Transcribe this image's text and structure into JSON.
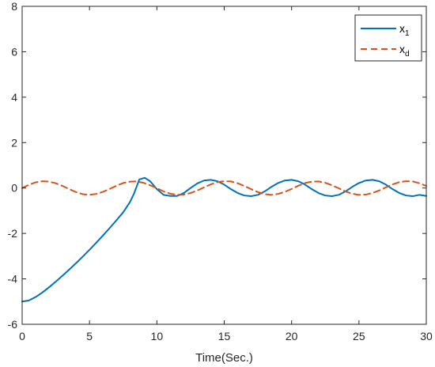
{
  "chart_data": {
    "type": "line",
    "title": "",
    "xlabel": "Time(Sec.)",
    "ylabel": "",
    "xlim": [
      0,
      30
    ],
    "ylim": [
      -6,
      8
    ],
    "xticks": [
      0,
      5,
      10,
      15,
      20,
      25,
      30
    ],
    "yticks": [
      -6,
      -4,
      -2,
      0,
      2,
      4,
      6,
      8
    ],
    "xtick_labels": [
      "0",
      "5",
      "10",
      "15",
      "20",
      "25",
      "30"
    ],
    "ytick_labels": [
      "-6",
      "-4",
      "-2",
      "0",
      "2",
      "4",
      "6",
      "8"
    ],
    "grid": false,
    "box": true,
    "legend_position": "top-right",
    "series": [
      {
        "name_main": "x",
        "name_sub": "1",
        "color": "#0072BD",
        "style": "solid",
        "x": [
          0,
          0.5,
          1,
          1.5,
          2,
          2.5,
          3,
          3.5,
          4,
          4.5,
          5,
          5.5,
          6,
          6.5,
          7,
          7.5,
          8,
          8.3,
          8.7,
          9.1,
          9.5,
          10,
          10.5,
          11,
          11.5,
          12,
          12.5,
          13,
          13.5,
          14,
          14.5,
          15,
          15.5,
          16,
          16.5,
          17,
          17.5,
          18,
          18.5,
          19,
          19.5,
          20,
          20.5,
          21,
          21.5,
          22,
          22.5,
          23,
          23.5,
          24,
          24.5,
          25,
          25.5,
          26,
          26.5,
          27,
          27.5,
          28,
          28.5,
          29,
          29.5,
          30
        ],
        "values": [
          -5.0,
          -4.95,
          -4.8,
          -4.6,
          -4.37,
          -4.12,
          -3.86,
          -3.59,
          -3.31,
          -3.02,
          -2.72,
          -2.41,
          -2.09,
          -1.76,
          -1.42,
          -1.07,
          -0.62,
          -0.25,
          0.38,
          0.45,
          0.3,
          -0.05,
          -0.3,
          -0.35,
          -0.35,
          -0.22,
          0.0,
          0.2,
          0.33,
          0.36,
          0.3,
          0.15,
          -0.05,
          -0.22,
          -0.33,
          -0.36,
          -0.3,
          -0.15,
          0.05,
          0.22,
          0.33,
          0.36,
          0.3,
          0.15,
          -0.05,
          -0.22,
          -0.33,
          -0.36,
          -0.3,
          -0.15,
          0.05,
          0.22,
          0.33,
          0.36,
          0.3,
          0.15,
          -0.05,
          -0.22,
          -0.33,
          -0.36,
          -0.3,
          -0.35
        ]
      },
      {
        "name_main": "x",
        "name_sub": "d",
        "color": "#D95319",
        "style": "dashed",
        "x": [
          0,
          0.5,
          1,
          1.5,
          2,
          2.5,
          3,
          3.5,
          4,
          4.5,
          5,
          5.5,
          6,
          6.5,
          7,
          7.5,
          8,
          8.5,
          9,
          9.5,
          10,
          10.5,
          11,
          11.5,
          12,
          12.5,
          13,
          13.5,
          14,
          14.5,
          15,
          15.5,
          16,
          16.5,
          17,
          17.5,
          18,
          18.5,
          19,
          19.5,
          20,
          20.5,
          21,
          21.5,
          22,
          22.5,
          23,
          23.5,
          24,
          24.5,
          25,
          25.5,
          26,
          26.5,
          27,
          27.5,
          28,
          28.5,
          29,
          29.5,
          30
        ],
        "values": [
          0.0,
          0.14,
          0.25,
          0.3,
          0.28,
          0.21,
          0.09,
          -0.05,
          -0.18,
          -0.27,
          -0.3,
          -0.26,
          -0.17,
          -0.04,
          0.1,
          0.22,
          0.28,
          0.29,
          0.23,
          0.12,
          -0.01,
          -0.15,
          -0.25,
          -0.3,
          -0.29,
          -0.22,
          -0.11,
          0.03,
          0.16,
          0.26,
          0.3,
          0.29,
          0.21,
          0.09,
          -0.05,
          -0.18,
          -0.27,
          -0.3,
          -0.26,
          -0.17,
          -0.04,
          0.1,
          0.22,
          0.28,
          0.29,
          0.23,
          0.12,
          -0.01,
          -0.15,
          -0.25,
          -0.3,
          -0.29,
          -0.22,
          -0.11,
          0.03,
          0.16,
          0.26,
          0.3,
          0.29,
          0.21,
          0.09
        ]
      }
    ]
  }
}
